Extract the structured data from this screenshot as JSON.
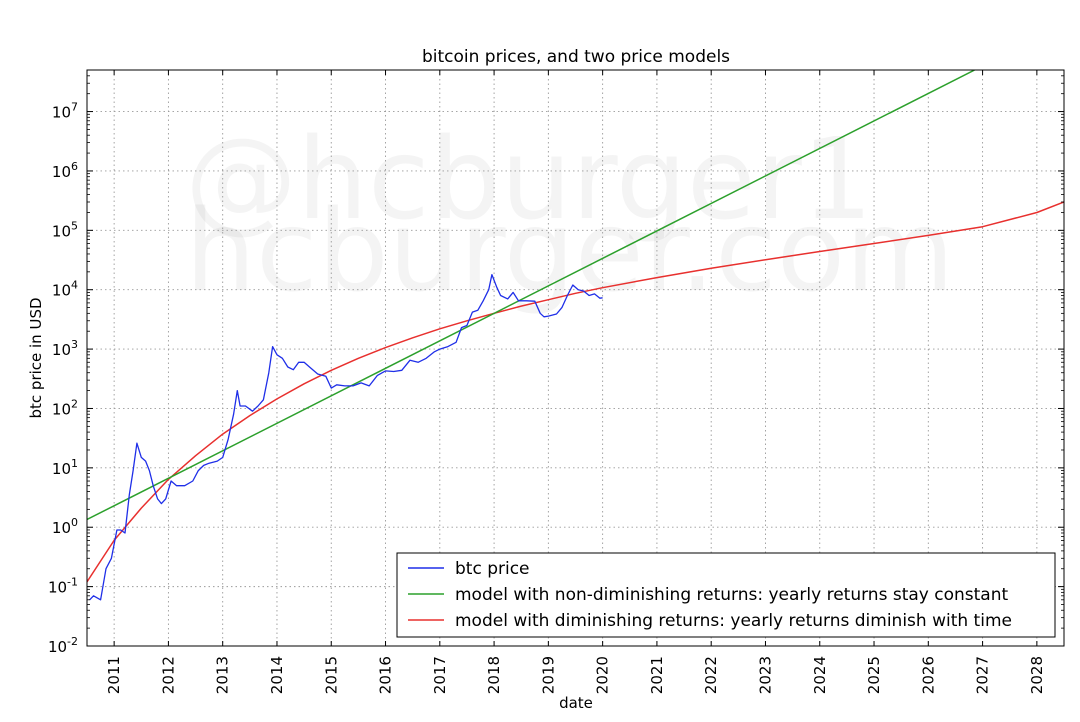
{
  "chart_data": {
    "type": "line",
    "title": "bitcoin prices, and two price models",
    "xlabel": "date",
    "ylabel": "btc price in USD",
    "xlim": [
      2010.5,
      2028.5
    ],
    "ylim_log10": [
      -2,
      7.7
    ],
    "grid": true,
    "x_ticks": [
      "2011",
      "2012",
      "2013",
      "2014",
      "2015",
      "2016",
      "2017",
      "2018",
      "2019",
      "2020",
      "2021",
      "2022",
      "2023",
      "2024",
      "2025",
      "2026",
      "2027",
      "2028"
    ],
    "y_ticks": [
      {
        "base": "10",
        "exp": "-2"
      },
      {
        "base": "10",
        "exp": "-1"
      },
      {
        "base": "10",
        "exp": "0"
      },
      {
        "base": "10",
        "exp": "1"
      },
      {
        "base": "10",
        "exp": "2"
      },
      {
        "base": "10",
        "exp": "3"
      },
      {
        "base": "10",
        "exp": "4"
      },
      {
        "base": "10",
        "exp": "5"
      },
      {
        "base": "10",
        "exp": "6"
      },
      {
        "base": "10",
        "exp": "7"
      }
    ],
    "watermark": [
      "@hcburger1",
      "hcburger.com"
    ],
    "legend_position": "lower-right",
    "series": [
      {
        "name": "btc price",
        "color": "#1f2fe8",
        "points": [
          [
            2010.55,
            0.06
          ],
          [
            2010.62,
            0.07
          ],
          [
            2010.75,
            0.06
          ],
          [
            2010.85,
            0.2
          ],
          [
            2010.95,
            0.3
          ],
          [
            2011.05,
            0.9
          ],
          [
            2011.12,
            0.9
          ],
          [
            2011.2,
            0.8
          ],
          [
            2011.28,
            3.5
          ],
          [
            2011.35,
            9
          ],
          [
            2011.42,
            26
          ],
          [
            2011.5,
            15
          ],
          [
            2011.58,
            13
          ],
          [
            2011.65,
            9
          ],
          [
            2011.72,
            5
          ],
          [
            2011.8,
            3
          ],
          [
            2011.87,
            2.5
          ],
          [
            2011.95,
            3
          ],
          [
            2012.05,
            6
          ],
          [
            2012.15,
            5
          ],
          [
            2012.3,
            5
          ],
          [
            2012.45,
            6
          ],
          [
            2012.55,
            9
          ],
          [
            2012.65,
            11
          ],
          [
            2012.75,
            12
          ],
          [
            2012.9,
            13
          ],
          [
            2013.0,
            15
          ],
          [
            2013.1,
            30
          ],
          [
            2013.2,
            80
          ],
          [
            2013.27,
            200
          ],
          [
            2013.32,
            110
          ],
          [
            2013.42,
            110
          ],
          [
            2013.55,
            90
          ],
          [
            2013.65,
            110
          ],
          [
            2013.75,
            140
          ],
          [
            2013.85,
            400
          ],
          [
            2013.92,
            1100
          ],
          [
            2014.0,
            800
          ],
          [
            2014.1,
            700
          ],
          [
            2014.2,
            500
          ],
          [
            2014.3,
            450
          ],
          [
            2014.4,
            600
          ],
          [
            2014.5,
            600
          ],
          [
            2014.6,
            500
          ],
          [
            2014.75,
            380
          ],
          [
            2014.9,
            350
          ],
          [
            2015.0,
            220
          ],
          [
            2015.1,
            250
          ],
          [
            2015.25,
            240
          ],
          [
            2015.4,
            240
          ],
          [
            2015.55,
            270
          ],
          [
            2015.7,
            240
          ],
          [
            2015.85,
            360
          ],
          [
            2016.0,
            430
          ],
          [
            2016.15,
            420
          ],
          [
            2016.3,
            440
          ],
          [
            2016.45,
            650
          ],
          [
            2016.6,
            600
          ],
          [
            2016.75,
            700
          ],
          [
            2016.9,
            900
          ],
          [
            2017.0,
            1000
          ],
          [
            2017.15,
            1100
          ],
          [
            2017.3,
            1300
          ],
          [
            2017.4,
            2300
          ],
          [
            2017.5,
            2500
          ],
          [
            2017.6,
            4200
          ],
          [
            2017.7,
            4500
          ],
          [
            2017.8,
            6500
          ],
          [
            2017.9,
            10000
          ],
          [
            2017.96,
            18000
          ],
          [
            2018.05,
            11000
          ],
          [
            2018.12,
            8000
          ],
          [
            2018.25,
            7000
          ],
          [
            2018.35,
            9000
          ],
          [
            2018.45,
            6500
          ],
          [
            2018.6,
            6500
          ],
          [
            2018.75,
            6400
          ],
          [
            2018.85,
            4000
          ],
          [
            2018.92,
            3500
          ],
          [
            2019.0,
            3600
          ],
          [
            2019.15,
            3900
          ],
          [
            2019.25,
            5000
          ],
          [
            2019.35,
            8000
          ],
          [
            2019.45,
            12000
          ],
          [
            2019.55,
            10000
          ],
          [
            2019.65,
            9500
          ],
          [
            2019.75,
            8000
          ],
          [
            2019.85,
            8500
          ],
          [
            2019.95,
            7200
          ],
          [
            2020.0,
            7300
          ]
        ]
      },
      {
        "name": "model with non-diminishing returns: yearly returns stay constant",
        "color": "#2ca02c",
        "points": [
          [
            2010.5,
            1.35
          ],
          [
            2026.85,
            50000000
          ]
        ]
      },
      {
        "name": "model with diminishing returns: yearly returns diminish with time",
        "color": "#e8302e",
        "points": [
          [
            2010.5,
            0.12
          ],
          [
            2011.0,
            0.6
          ],
          [
            2011.5,
            2.1
          ],
          [
            2012.0,
            6.4
          ],
          [
            2012.5,
            16
          ],
          [
            2013.0,
            37
          ],
          [
            2013.5,
            76
          ],
          [
            2014.0,
            145
          ],
          [
            2014.5,
            260
          ],
          [
            2015.0,
            440
          ],
          [
            2015.5,
            700
          ],
          [
            2016.0,
            1060
          ],
          [
            2016.5,
            1550
          ],
          [
            2017.0,
            2200
          ],
          [
            2017.5,
            3000
          ],
          [
            2018.0,
            4000
          ],
          [
            2018.5,
            5300
          ],
          [
            2019.0,
            6800
          ],
          [
            2019.5,
            8700
          ],
          [
            2020.0,
            10800
          ],
          [
            2021.0,
            16000
          ],
          [
            2022.0,
            23000
          ],
          [
            2023.0,
            32000
          ],
          [
            2024.0,
            44000
          ],
          [
            2025.0,
            60000
          ],
          [
            2026.0,
            82000
          ],
          [
            2027.0,
            115000
          ],
          [
            2028.0,
            200000
          ],
          [
            2028.5,
            300000
          ]
        ]
      }
    ]
  }
}
